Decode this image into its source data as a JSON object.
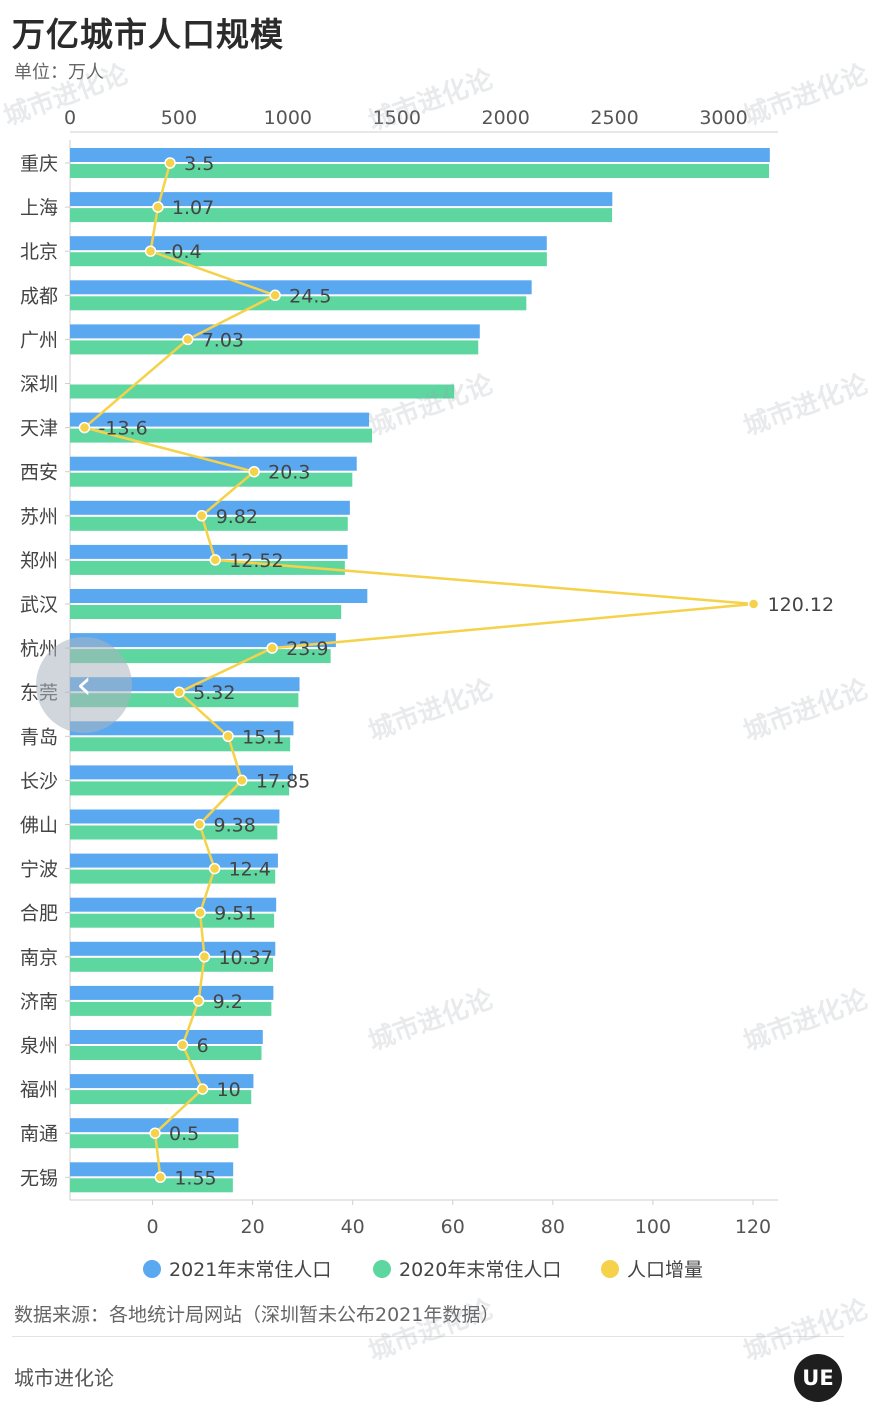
{
  "title": "万亿城市人口规模",
  "unit_label": "单位：万人",
  "source_note": "数据来源：各地统计局网站（深圳暂未公布2021年数据）",
  "footer_brand": "城市进化论",
  "logo_text": "UE",
  "watermark_text": "城市进化论",
  "nav_icon": "chevron-left-icon",
  "colors": {
    "bar2021": "#5aa8f0",
    "bar2020": "#5ed6a0",
    "line": "#f5d24a",
    "grid": "#dddddd"
  },
  "chart_data": {
    "type": "bar",
    "orientation": "horizontal",
    "categories": [
      "重庆",
      "上海",
      "北京",
      "成都",
      "广州",
      "深圳",
      "天津",
      "西安",
      "苏州",
      "郑州",
      "武汉",
      "杭州",
      "东莞",
      "青岛",
      "长沙",
      "佛山",
      "宁波",
      "合肥",
      "南京",
      "济南",
      "泉州",
      "福州",
      "南通",
      "无锡"
    ],
    "series": [
      {
        "name": "2021年末常住人口",
        "axis": "top",
        "values": [
          3212.43,
          2489.43,
          2188.6,
          2119.2,
          1881.06,
          null,
          1373,
          1316.3,
          1284.78,
          1274.2,
          1364.89,
          1220.4,
          1053.68,
          1025.67,
          1023.93,
          961.26,
          954.4,
          946.5,
          942.34,
          933.6,
          885,
          842,
          773.3,
          749.08
        ]
      },
      {
        "name": "2020年末常住人口",
        "axis": "top",
        "values": [
          3208.93,
          2488.36,
          2189,
          2094.7,
          1874.03,
          1763.38,
          1386.6,
          1296,
          1274.96,
          1261.68,
          1244.77,
          1196.5,
          1048.36,
          1010.57,
          1006.08,
          951.88,
          942,
          937,
          931.97,
          924.4,
          879,
          832,
          772.8,
          747.53
        ]
      },
      {
        "name": "人口增量",
        "axis": "bottom",
        "type": "line",
        "values": [
          3.5,
          1.07,
          -0.4,
          24.5,
          7.03,
          null,
          -13.6,
          20.3,
          9.82,
          12.52,
          120.12,
          23.9,
          5.32,
          15.1,
          17.85,
          9.38,
          12.4,
          9.51,
          10.37,
          9.2,
          6,
          10,
          0.5,
          1.55
        ],
        "labels": [
          "3.5",
          "1.07",
          "-0.4",
          "24.5",
          "7.03",
          "",
          "-13.6",
          "20.3",
          "9.82",
          "12.52",
          "120.12",
          "23.9",
          "5.32",
          "15.1",
          "17.85",
          "9.38",
          "12.4",
          "9.51",
          "10.37",
          "9.2",
          "6",
          "10",
          "0.5",
          "1.55"
        ]
      }
    ],
    "top_axis": {
      "ticks": [
        0,
        500,
        1000,
        1500,
        2000,
        2500,
        3000
      ],
      "range": [
        0,
        3250
      ]
    },
    "bottom_axis": {
      "ticks": [
        0,
        20,
        40,
        60,
        80,
        100,
        120
      ],
      "range": [
        -16.5,
        125
      ]
    },
    "legend_position": "bottom",
    "grid": false
  }
}
